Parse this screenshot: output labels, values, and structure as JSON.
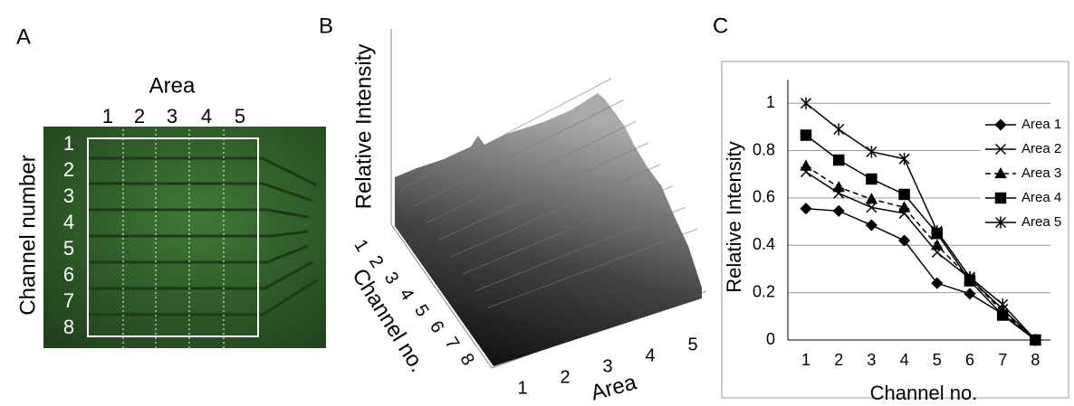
{
  "panels": {
    "A": {
      "label": "A",
      "top_label": "Area",
      "areas": [
        "1",
        "2",
        "3",
        "4",
        "5"
      ],
      "side_label": "Channel number",
      "channels": [
        "1",
        "2",
        "3",
        "4",
        "5",
        "6",
        "7",
        "8"
      ]
    },
    "B": {
      "label": "B",
      "z_label": "Relative Intensity",
      "y_label": "Channel no.",
      "channels": [
        "1",
        "2",
        "3",
        "4",
        "5",
        "6",
        "7",
        "8"
      ],
      "x_label": "Area",
      "areas": [
        "1",
        "2",
        "3",
        "4",
        "5"
      ]
    },
    "C": {
      "label": "C"
    }
  },
  "chart_data": {
    "type": "line",
    "xlabel": "Channel no.",
    "ylabel": "Relative Intensity",
    "categories": [
      "1",
      "2",
      "3",
      "4",
      "5",
      "6",
      "7",
      "8"
    ],
    "ylim": [
      0,
      1.1
    ],
    "yticks": [
      0,
      0.2,
      0.4,
      0.6,
      0.8,
      1
    ],
    "grid": true,
    "legend": "right",
    "series": [
      {
        "name": "Area 1",
        "color": "#000000",
        "marker": "diamond",
        "dashed": false,
        "values": [
          0.555,
          0.545,
          0.485,
          0.42,
          0.24,
          0.195,
          0.11,
          0.0
        ]
      },
      {
        "name": "Area 2",
        "color": "#000000",
        "marker": "x",
        "dashed": false,
        "values": [
          0.71,
          0.62,
          0.56,
          0.535,
          0.37,
          0.26,
          0.13,
          0.0
        ]
      },
      {
        "name": "Area 3",
        "color": "#000000",
        "marker": "triangle",
        "dashed": true,
        "values": [
          0.735,
          0.645,
          0.595,
          0.56,
          0.4,
          0.26,
          0.12,
          0.0
        ]
      },
      {
        "name": "Area 4",
        "color": "#000000",
        "marker": "square",
        "dashed": false,
        "values": [
          0.865,
          0.76,
          0.68,
          0.615,
          0.45,
          0.25,
          0.105,
          0.0
        ]
      },
      {
        "name": "Area 5",
        "color": "#000000",
        "marker": "star",
        "dashed": false,
        "values": [
          1.0,
          0.89,
          0.795,
          0.765,
          0.46,
          0.265,
          0.15,
          0.0
        ]
      }
    ]
  }
}
